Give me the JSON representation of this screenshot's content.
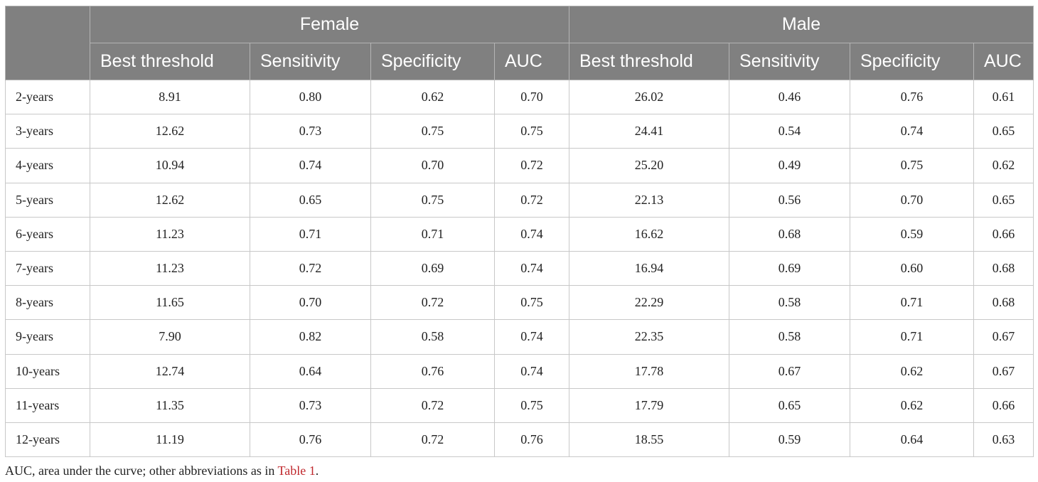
{
  "table": {
    "groups": [
      "Female",
      "Male"
    ],
    "columns": [
      "Best threshold",
      "Sensitivity",
      "Specificity",
      "AUC",
      "Best threshold",
      "Sensitivity",
      "Specificity",
      "AUC"
    ],
    "rows": [
      {
        "label": "2-years",
        "values": [
          "8.91",
          "0.80",
          "0.62",
          "0.70",
          "26.02",
          "0.46",
          "0.76",
          "0.61"
        ]
      },
      {
        "label": "3-years",
        "values": [
          "12.62",
          "0.73",
          "0.75",
          "0.75",
          "24.41",
          "0.54",
          "0.74",
          "0.65"
        ]
      },
      {
        "label": "4-years",
        "values": [
          "10.94",
          "0.74",
          "0.70",
          "0.72",
          "25.20",
          "0.49",
          "0.75",
          "0.62"
        ]
      },
      {
        "label": "5-years",
        "values": [
          "12.62",
          "0.65",
          "0.75",
          "0.72",
          "22.13",
          "0.56",
          "0.70",
          "0.65"
        ]
      },
      {
        "label": "6-years",
        "values": [
          "11.23",
          "0.71",
          "0.71",
          "0.74",
          "16.62",
          "0.68",
          "0.59",
          "0.66"
        ]
      },
      {
        "label": "7-years",
        "values": [
          "11.23",
          "0.72",
          "0.69",
          "0.74",
          "16.94",
          "0.69",
          "0.60",
          "0.68"
        ]
      },
      {
        "label": "8-years",
        "values": [
          "11.65",
          "0.70",
          "0.72",
          "0.75",
          "22.29",
          "0.58",
          "0.71",
          "0.68"
        ]
      },
      {
        "label": "9-years",
        "values": [
          "7.90",
          "0.82",
          "0.58",
          "0.74",
          "22.35",
          "0.58",
          "0.71",
          "0.67"
        ]
      },
      {
        "label": "10-years",
        "values": [
          "12.74",
          "0.64",
          "0.76",
          "0.74",
          "17.78",
          "0.67",
          "0.62",
          "0.67"
        ]
      },
      {
        "label": "11-years",
        "values": [
          "11.35",
          "0.73",
          "0.72",
          "0.75",
          "17.79",
          "0.65",
          "0.62",
          "0.66"
        ]
      },
      {
        "label": "12-years",
        "values": [
          "11.19",
          "0.76",
          "0.72",
          "0.76",
          "18.55",
          "0.59",
          "0.64",
          "0.63"
        ]
      }
    ]
  },
  "footnote": {
    "text": "AUC, area under the curve; other abbreviations as in ",
    "link": "Table 1",
    "end": "."
  },
  "colors": {
    "header_bg": "#808080",
    "header_text": "#ffffff",
    "link": "#c0282d"
  }
}
